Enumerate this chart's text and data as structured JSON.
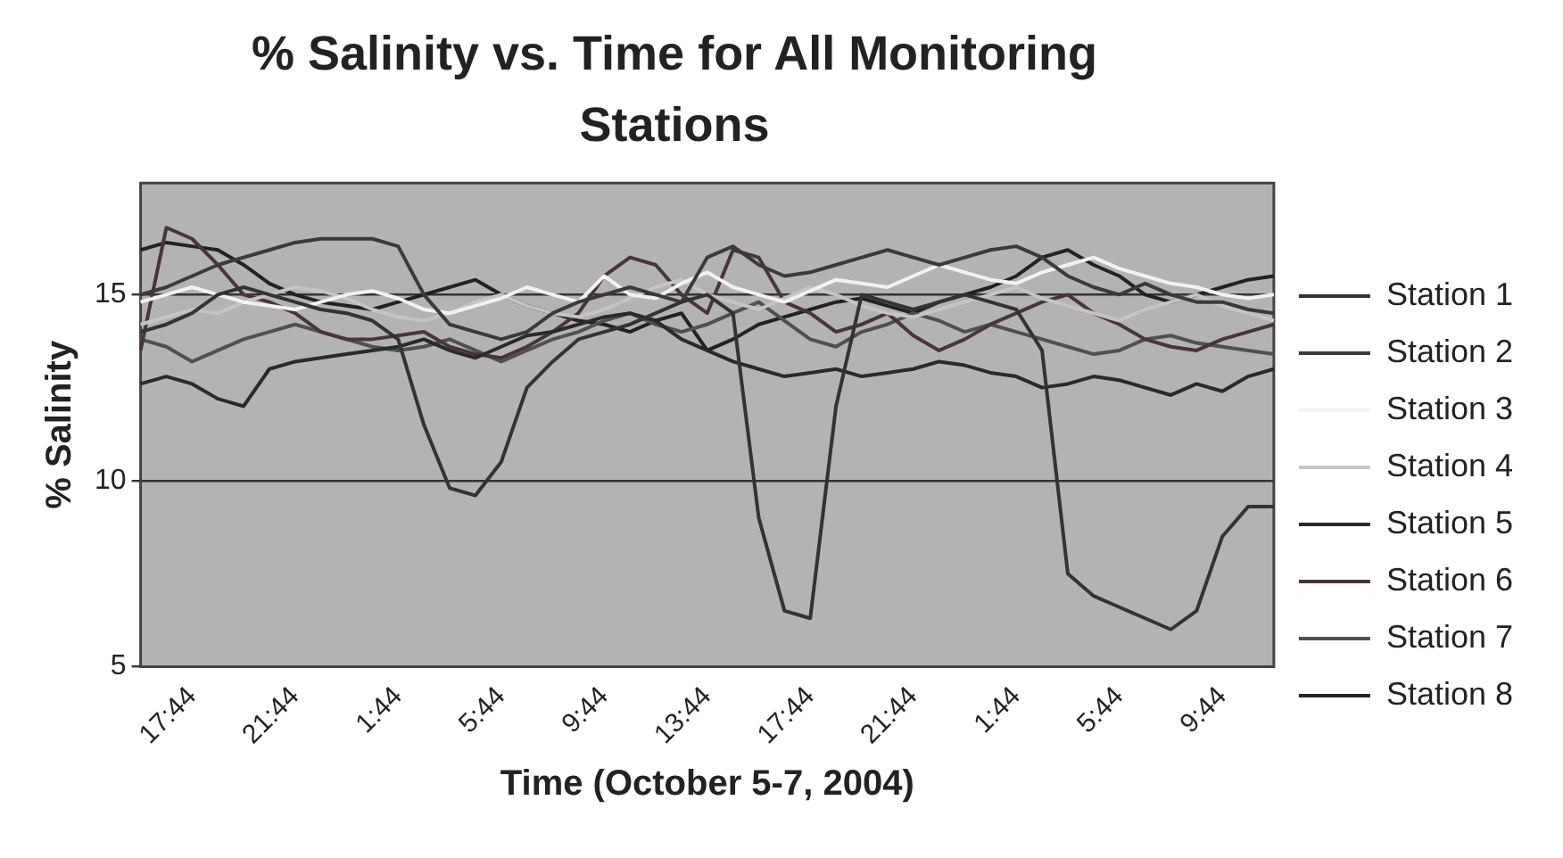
{
  "chart_data": {
    "type": "line",
    "title": "% Salinity vs. Time for All  Monitoring Stations",
    "xlabel": "Time (October 5-7, 2004)",
    "ylabel": "% Salinity",
    "categories": [
      null,
      null,
      "17:44",
      null,
      null,
      null,
      "21:44",
      null,
      null,
      null,
      "1:44",
      null,
      null,
      null,
      "5:44",
      null,
      null,
      null,
      "9:44",
      null,
      null,
      null,
      "13:44",
      null,
      null,
      null,
      "17:44",
      null,
      null,
      null,
      "21:44",
      null,
      null,
      null,
      "1:44",
      null,
      null,
      null,
      "5:44",
      null,
      null,
      null,
      "9:44",
      null,
      null
    ],
    "series": [
      {
        "name": "Station 1",
        "color": "#333333",
        "values": [
          14.0,
          14.2,
          14.5,
          15.0,
          15.2,
          15.0,
          14.8,
          14.6,
          14.5,
          14.3,
          13.8,
          11.5,
          9.8,
          9.6,
          10.5,
          12.5,
          13.2,
          13.8,
          14.0,
          14.2,
          14.5,
          14.8,
          15.0,
          14.5,
          9.0,
          6.5,
          6.3,
          12.0,
          15.0,
          14.8,
          14.6,
          14.8,
          15.0,
          14.8,
          14.6,
          13.5,
          7.5,
          6.9,
          6.6,
          6.3,
          6.0,
          6.5,
          8.5,
          9.3,
          9.3
        ]
      },
      {
        "name": "Station 2",
        "color": "#3a3a3a",
        "values": [
          15.0,
          15.2,
          15.5,
          15.8,
          16.0,
          16.2,
          16.4,
          16.5,
          16.5,
          16.5,
          16.3,
          15.0,
          14.2,
          14.0,
          13.8,
          14.0,
          14.5,
          14.8,
          15.0,
          15.2,
          15.0,
          14.8,
          16.0,
          16.3,
          15.8,
          15.5,
          15.6,
          15.8,
          16.0,
          16.2,
          16.0,
          15.8,
          16.0,
          16.2,
          16.3,
          16.0,
          15.5,
          15.2,
          15.0,
          15.3,
          15.0,
          14.8,
          14.8,
          14.6,
          14.5
        ]
      },
      {
        "name": "Station 3",
        "color": "#f2f2f2",
        "values": [
          14.8,
          15.0,
          15.2,
          15.0,
          14.8,
          14.7,
          14.6,
          14.8,
          15.0,
          15.1,
          14.9,
          14.6,
          14.5,
          14.7,
          14.9,
          15.2,
          15.0,
          14.8,
          15.5,
          15.0,
          14.9,
          15.3,
          15.6,
          15.2,
          15.0,
          14.8,
          15.1,
          15.4,
          15.3,
          15.2,
          15.5,
          15.8,
          15.6,
          15.4,
          15.3,
          15.6,
          15.8,
          16.0,
          15.7,
          15.5,
          15.3,
          15.2,
          15.0,
          14.9,
          15.0
        ]
      },
      {
        "name": "Station 4",
        "color": "#c4c4c4",
        "values": [
          14.2,
          14.4,
          14.6,
          14.5,
          14.8,
          15.0,
          15.2,
          15.1,
          14.9,
          14.6,
          14.4,
          14.3,
          14.5,
          14.8,
          15.0,
          14.7,
          14.5,
          14.4,
          14.6,
          14.9,
          15.2,
          15.4,
          15.0,
          14.8,
          14.6,
          14.9,
          15.2,
          15.0,
          14.7,
          14.5,
          14.4,
          14.6,
          14.8,
          15.0,
          15.2,
          14.9,
          14.7,
          14.5,
          14.3,
          14.6,
          14.8,
          15.0,
          14.7,
          14.5,
          14.3
        ]
      },
      {
        "name": "Station 5",
        "color": "#2a2a2a",
        "values": [
          12.6,
          12.8,
          12.6,
          12.2,
          12.0,
          13.0,
          13.2,
          13.3,
          13.4,
          13.5,
          13.6,
          13.8,
          13.5,
          13.3,
          13.6,
          13.9,
          14.0,
          14.2,
          14.4,
          14.5,
          14.3,
          13.8,
          13.5,
          13.2,
          13.0,
          12.8,
          12.9,
          13.0,
          12.8,
          12.9,
          13.0,
          13.2,
          13.1,
          12.9,
          12.8,
          12.5,
          12.6,
          12.8,
          12.7,
          12.5,
          12.3,
          12.6,
          12.4,
          12.8,
          13.0
        ]
      },
      {
        "name": "Station 6",
        "color": "#4a3535",
        "values": [
          13.5,
          16.8,
          16.5,
          15.8,
          15.0,
          14.8,
          14.5,
          14.0,
          13.8,
          13.8,
          13.9,
          14.0,
          13.6,
          13.4,
          13.3,
          13.6,
          14.0,
          14.5,
          15.5,
          16.0,
          15.8,
          15.0,
          14.5,
          16.2,
          16.0,
          14.8,
          14.5,
          14.0,
          14.2,
          14.5,
          13.9,
          13.5,
          13.8,
          14.2,
          14.5,
          14.8,
          15.0,
          14.5,
          14.2,
          13.8,
          13.6,
          13.5,
          13.8,
          14.0,
          14.2
        ]
      },
      {
        "name": "Station 7",
        "color": "#505050",
        "values": [
          13.8,
          13.6,
          13.2,
          13.5,
          13.8,
          14.0,
          14.2,
          14.0,
          13.8,
          13.6,
          13.5,
          13.6,
          13.8,
          13.5,
          13.2,
          13.5,
          13.8,
          14.0,
          14.3,
          14.5,
          14.2,
          14.0,
          14.2,
          14.5,
          14.8,
          14.3,
          13.8,
          13.6,
          14.0,
          14.2,
          14.5,
          14.3,
          14.0,
          14.2,
          14.0,
          13.8,
          13.6,
          13.4,
          13.5,
          13.8,
          13.9,
          13.7,
          13.6,
          13.5,
          13.4
        ]
      },
      {
        "name": "Station 8",
        "color": "#222222",
        "values": [
          16.2,
          16.4,
          16.3,
          16.2,
          15.8,
          15.3,
          15.0,
          14.8,
          14.7,
          14.6,
          14.8,
          15.0,
          15.2,
          15.4,
          15.0,
          14.7,
          14.5,
          14.3,
          14.2,
          14.0,
          14.3,
          14.5,
          13.5,
          13.8,
          14.2,
          14.4,
          14.6,
          14.8,
          14.9,
          14.7,
          14.5,
          14.8,
          15.0,
          15.2,
          15.5,
          16.0,
          16.2,
          15.8,
          15.5,
          15.0,
          14.8,
          15.0,
          15.2,
          15.4,
          15.5
        ]
      }
    ],
    "ylim": [
      5,
      18
    ],
    "yticks": [
      5,
      10,
      15
    ],
    "grid": "y",
    "legend": "right",
    "marker": "none",
    "line_style": "solid"
  }
}
